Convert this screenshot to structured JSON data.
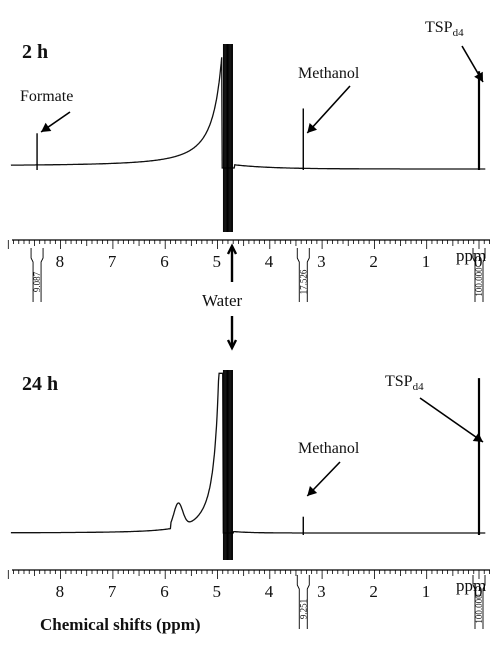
{
  "chart_data": [
    {
      "type": "line",
      "panel_label": "2 h",
      "xlabel": "",
      "x_unit": "ppm",
      "xlim": [
        9,
        0
      ],
      "x_ticks": [
        "8",
        "7",
        "6",
        "5",
        "4",
        "3",
        "2",
        "1",
        "0"
      ],
      "peaks": [
        {
          "label": "Formate",
          "ppm": 8.45,
          "relative_height": 0.28
        },
        {
          "label": "Water",
          "ppm": 4.8,
          "relative_height": 1.0
        },
        {
          "label": "Methanol",
          "ppm": 3.36,
          "relative_height": 0.48
        },
        {
          "label": "TSP_d4",
          "ppm": 0.0,
          "relative_height": 0.78
        }
      ],
      "annotations": [
        {
          "text_main": "Formate",
          "text_sub": "",
          "target_ppm": 8.45
        },
        {
          "text_main": "Methanol",
          "text_sub": "",
          "target_ppm": 3.36
        },
        {
          "text_main": "TSP",
          "text_sub": "d4",
          "target_ppm": 0.0
        }
      ],
      "integrals": [
        {
          "ppm": 8.45,
          "value": "9.087"
        },
        {
          "ppm": 3.36,
          "value": "17.526"
        },
        {
          "ppm": 0.0,
          "value": "100.000"
        }
      ]
    },
    {
      "type": "line",
      "panel_label": "24 h",
      "xlabel": "Chemical shifts (ppm)",
      "x_unit": "ppm",
      "xlim": [
        9,
        0
      ],
      "x_ticks": [
        "8",
        "7",
        "6",
        "5",
        "4",
        "3",
        "2",
        "1",
        "0"
      ],
      "peaks": [
        {
          "label": "Water",
          "ppm": 4.8,
          "relative_height": 1.0
        },
        {
          "label": "Methanol",
          "ppm": 3.36,
          "relative_height": 0.1
        },
        {
          "label": "TSP_d4",
          "ppm": 0.0,
          "relative_height": 0.95
        }
      ],
      "annotations": [
        {
          "text_main": "Methanol",
          "text_sub": "",
          "target_ppm": 3.36
        },
        {
          "text_main": "TSP",
          "text_sub": "d4",
          "target_ppm": 0.0
        }
      ],
      "integrals": [
        {
          "ppm": 3.36,
          "value": "9.251"
        },
        {
          "ppm": 0.0,
          "value": "100.000"
        }
      ]
    }
  ],
  "water_label": "Water"
}
